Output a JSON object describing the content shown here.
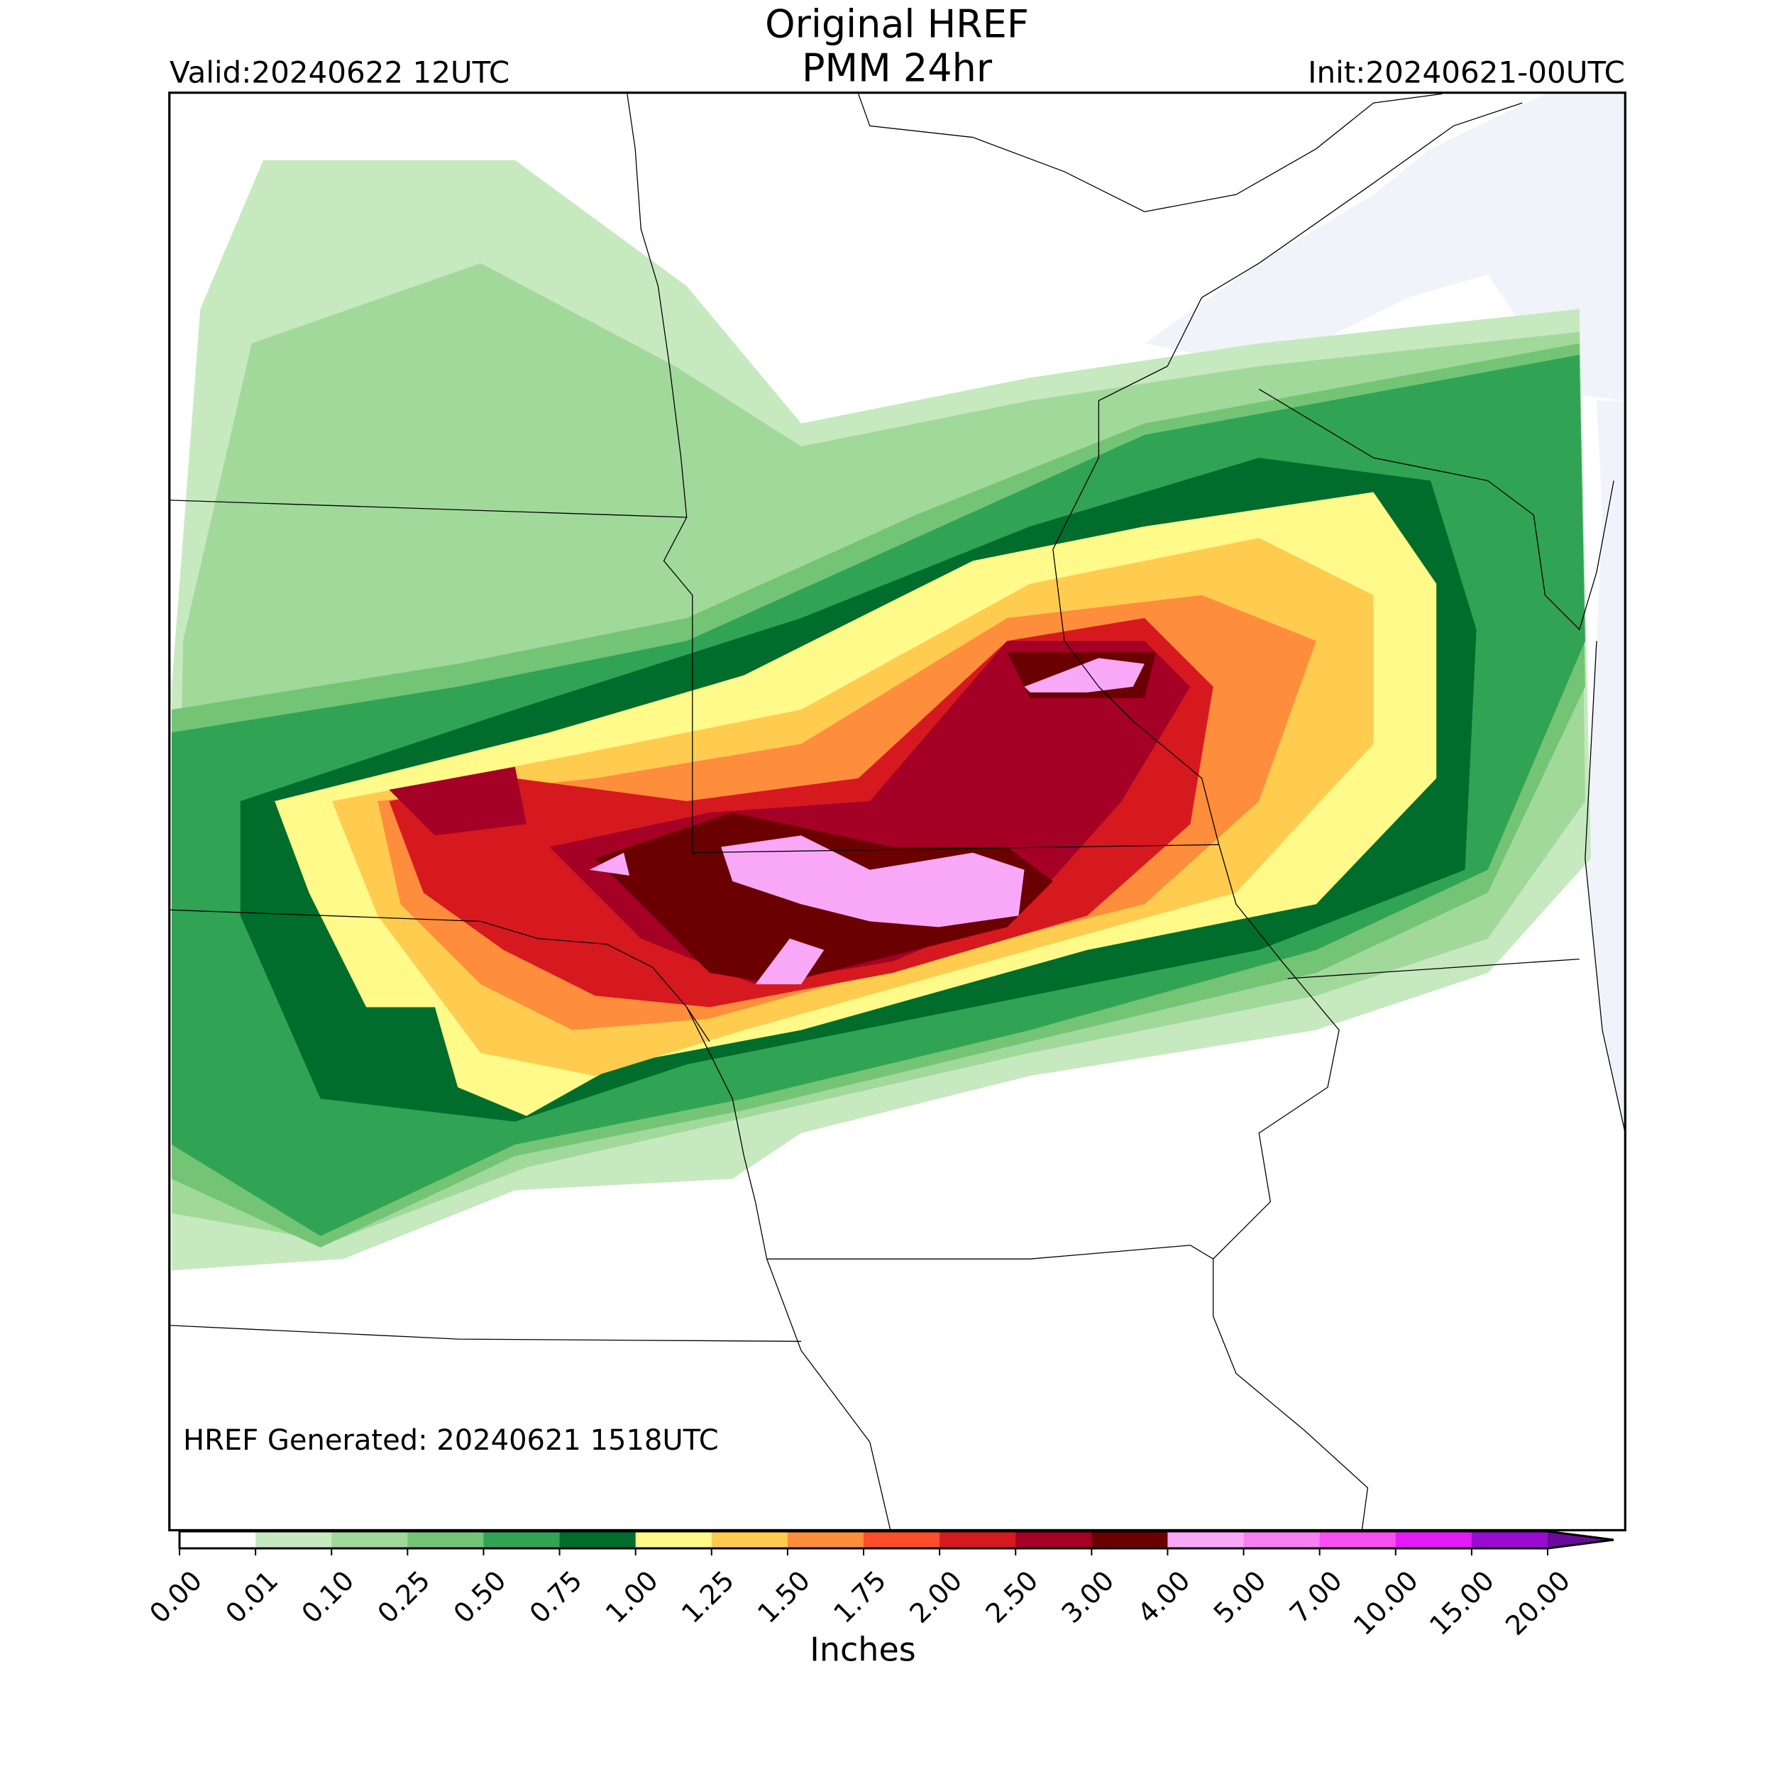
{
  "header": {
    "title": "Original HREF",
    "subtitle": "PMM 24hr",
    "valid": "Valid:20240622 12UTC",
    "init": "Init:20240621-00UTC"
  },
  "map": {
    "note": "HREF Generated: 20240621 1518UTC"
  },
  "colorbar": {
    "ticks": [
      {
        "value": 0,
        "label": "0.00"
      },
      {
        "value": 0.01,
        "label": "0.01"
      },
      {
        "value": 0.1,
        "label": "0.10"
      },
      {
        "value": 0.25,
        "label": "0.25"
      },
      {
        "value": 0.5,
        "label": "0.50"
      },
      {
        "value": 0.75,
        "label": "0.75"
      },
      {
        "value": 1,
        "label": "1.00"
      },
      {
        "value": 1.25,
        "label": "1.25"
      },
      {
        "value": 1.5,
        "label": "1.50"
      },
      {
        "value": 1.75,
        "label": "1.75"
      },
      {
        "value": 2,
        "label": "2.00"
      },
      {
        "value": 2.5,
        "label": "2.50"
      },
      {
        "value": 3,
        "label": "3.00"
      },
      {
        "value": 4,
        "label": "4.00"
      },
      {
        "value": 5,
        "label": "5.00"
      },
      {
        "value": 7,
        "label": "7.00"
      },
      {
        "value": 10,
        "label": "10.00"
      },
      {
        "value": 15,
        "label": "15.00"
      },
      {
        "value": 20,
        "label": "20.00"
      }
    ],
    "colors": [
      "#ffffff",
      "#c7e9c0",
      "#a1d99b",
      "#74c476",
      "#31a354",
      "#006d2c",
      "#fffa8a",
      "#ffcc4f",
      "#fe8d3c",
      "#fc4e2a",
      "#d6191f",
      "#a50026",
      "#6b0000",
      "#f9a8f7",
      "#f77ff2",
      "#f74ef0",
      "#e31af5",
      "#9a0bd0"
    ],
    "extend_color": "#6a0a9a",
    "label": "Inches"
  }
}
